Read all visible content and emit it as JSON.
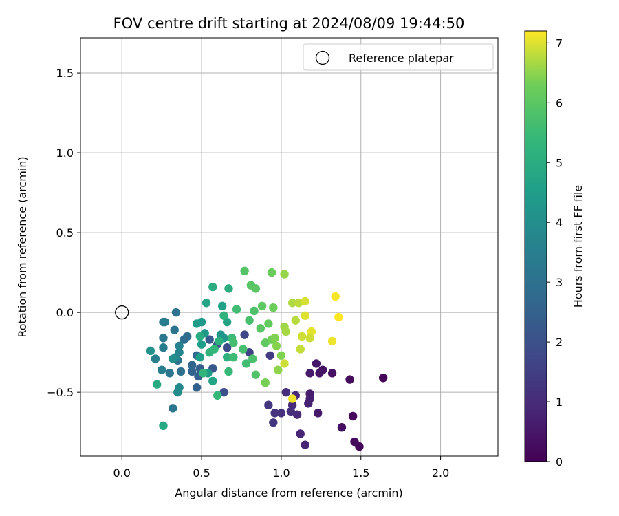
{
  "chart_data": {
    "type": "scatter",
    "title": "FOV centre drift starting at 2024/08/09 19:44:50",
    "xlabel": "Angular distance from reference (arcmin)",
    "ylabel": "Rotation from reference (arcmin)",
    "xlim": [
      -0.26,
      2.36
    ],
    "ylim": [
      -0.9,
      1.72
    ],
    "xticks": [
      0.0,
      0.5,
      1.0,
      1.5,
      2.0
    ],
    "xtick_labels": [
      "0.0",
      "0.5",
      "1.0",
      "1.5",
      "2.0"
    ],
    "yticks": [
      -0.5,
      0.0,
      0.5,
      1.0,
      1.5
    ],
    "ytick_labels": [
      "−0.5",
      "0.0",
      "0.5",
      "1.0",
      "1.5"
    ],
    "grid": true,
    "legend": {
      "placement": "top-right",
      "entries": [
        "Reference platepar"
      ]
    },
    "reference_point": {
      "name": "Reference platepar",
      "x": 0.0,
      "y": 0.0,
      "marker": "open-circle"
    },
    "colorbar": {
      "label": "Hours from first FF file",
      "range": [
        0,
        7.2
      ],
      "ticks": [
        0,
        1,
        2,
        3,
        4,
        5,
        6,
        7
      ],
      "tick_labels": [
        "0",
        "1",
        "2",
        "3",
        "4",
        "5",
        "6",
        "7"
      ],
      "colormap": "viridis"
    },
    "points": [
      {
        "x": 1.64,
        "y": -0.41,
        "h": 0.05
      },
      {
        "x": 1.49,
        "y": -0.84,
        "h": 0.1
      },
      {
        "x": 1.46,
        "y": -0.81,
        "h": 0.15
      },
      {
        "x": 1.45,
        "y": -0.65,
        "h": 0.2
      },
      {
        "x": 1.43,
        "y": -0.42,
        "h": 0.25
      },
      {
        "x": 1.38,
        "y": -0.72,
        "h": 0.3
      },
      {
        "x": 1.32,
        "y": -0.38,
        "h": 0.35
      },
      {
        "x": 1.26,
        "y": -0.36,
        "h": 0.4
      },
      {
        "x": 1.24,
        "y": -0.38,
        "h": 0.45
      },
      {
        "x": 1.22,
        "y": -0.32,
        "h": 0.5
      },
      {
        "x": 1.23,
        "y": -0.63,
        "h": 0.55
      },
      {
        "x": 1.18,
        "y": -0.38,
        "h": 0.6
      },
      {
        "x": 1.18,
        "y": -0.51,
        "h": 0.65
      },
      {
        "x": 1.18,
        "y": -0.54,
        "h": 0.7
      },
      {
        "x": 1.17,
        "y": -0.57,
        "h": 0.75
      },
      {
        "x": 1.15,
        "y": -0.83,
        "h": 0.8
      },
      {
        "x": 1.12,
        "y": -0.76,
        "h": 0.85
      },
      {
        "x": 1.09,
        "y": -0.52,
        "h": 0.9
      },
      {
        "x": 1.1,
        "y": -0.64,
        "h": 0.95
      },
      {
        "x": 1.07,
        "y": -0.58,
        "h": 1.0
      },
      {
        "x": 1.06,
        "y": -0.62,
        "h": 1.05
      },
      {
        "x": 1.03,
        "y": -0.5,
        "h": 1.1
      },
      {
        "x": 1.0,
        "y": -0.63,
        "h": 1.15
      },
      {
        "x": 0.96,
        "y": -0.63,
        "h": 1.2
      },
      {
        "x": 0.95,
        "y": -0.69,
        "h": 1.25
      },
      {
        "x": 0.92,
        "y": -0.58,
        "h": 1.3
      },
      {
        "x": 0.93,
        "y": -0.27,
        "h": 1.4
      },
      {
        "x": 0.8,
        "y": -0.25,
        "h": 1.6
      },
      {
        "x": 0.77,
        "y": -0.14,
        "h": 1.75
      },
      {
        "x": 0.66,
        "y": -0.22,
        "h": 1.85
      },
      {
        "x": 0.64,
        "y": -0.5,
        "h": 1.95
      },
      {
        "x": 0.6,
        "y": -0.2,
        "h": 2.1
      },
      {
        "x": 0.57,
        "y": -0.35,
        "h": 2.2
      },
      {
        "x": 0.55,
        "y": -0.17,
        "h": 2.3
      },
      {
        "x": 0.49,
        "y": -0.35,
        "h": 2.4
      },
      {
        "x": 0.48,
        "y": -0.4,
        "h": 2.45
      },
      {
        "x": 0.47,
        "y": -0.47,
        "h": 2.55
      },
      {
        "x": 0.44,
        "y": -0.33,
        "h": 2.6
      },
      {
        "x": 0.44,
        "y": -0.37,
        "h": 2.65
      },
      {
        "x": 0.47,
        "y": -0.27,
        "h": 2.7
      },
      {
        "x": 0.41,
        "y": -0.15,
        "h": 2.85
      },
      {
        "x": 0.39,
        "y": -0.17,
        "h": 2.9
      },
      {
        "x": 0.37,
        "y": -0.37,
        "h": 2.95
      },
      {
        "x": 0.35,
        "y": -0.3,
        "h": 3.0
      },
      {
        "x": 0.34,
        "y": 0.0,
        "h": 3.05
      },
      {
        "x": 0.33,
        "y": -0.11,
        "h": 3.1
      },
      {
        "x": 0.32,
        "y": -0.6,
        "h": 3.15
      },
      {
        "x": 0.3,
        "y": -0.38,
        "h": 3.2
      },
      {
        "x": 0.27,
        "y": -0.06,
        "h": 3.25
      },
      {
        "x": 0.26,
        "y": -0.16,
        "h": 3.3
      },
      {
        "x": 0.26,
        "y": -0.06,
        "h": 3.35
      },
      {
        "x": 0.26,
        "y": -0.22,
        "h": 3.4
      },
      {
        "x": 0.25,
        "y": -0.36,
        "h": 3.45
      },
      {
        "x": 0.21,
        "y": -0.29,
        "h": 3.5
      },
      {
        "x": 0.36,
        "y": -0.21,
        "h": 3.6
      },
      {
        "x": 0.36,
        "y": -0.25,
        "h": 3.65
      },
      {
        "x": 0.34,
        "y": -0.28,
        "h": 3.75
      },
      {
        "x": 0.36,
        "y": -0.47,
        "h": 3.8
      },
      {
        "x": 0.35,
        "y": -0.5,
        "h": 3.9
      },
      {
        "x": 0.32,
        "y": -0.29,
        "h": 4.0
      },
      {
        "x": 0.18,
        "y": -0.24,
        "h": 4.1
      },
      {
        "x": 0.62,
        "y": -0.14,
        "h": 4.2
      },
      {
        "x": 0.64,
        "y": -0.16,
        "h": 4.25
      },
      {
        "x": 0.52,
        "y": -0.13,
        "h": 4.3
      },
      {
        "x": 0.5,
        "y": -0.06,
        "h": 4.35
      },
      {
        "x": 0.54,
        "y": -0.38,
        "h": 4.4
      },
      {
        "x": 0.47,
        "y": -0.07,
        "h": 4.45
      },
      {
        "x": 0.5,
        "y": -0.2,
        "h": 4.5
      },
      {
        "x": 0.49,
        "y": -0.28,
        "h": 4.55
      },
      {
        "x": 0.63,
        "y": 0.04,
        "h": 4.6
      },
      {
        "x": 0.66,
        "y": -0.06,
        "h": 4.65
      },
      {
        "x": 0.57,
        "y": -0.43,
        "h": 4.7
      },
      {
        "x": 0.53,
        "y": 0.06,
        "h": 4.75
      },
      {
        "x": 0.26,
        "y": -0.71,
        "h": 4.85
      },
      {
        "x": 0.22,
        "y": -0.45,
        "h": 4.9
      },
      {
        "x": 0.49,
        "y": -0.15,
        "h": 4.95
      },
      {
        "x": 0.57,
        "y": 0.16,
        "h": 5.0
      },
      {
        "x": 0.67,
        "y": 0.15,
        "h": 5.05
      },
      {
        "x": 0.61,
        "y": -0.18,
        "h": 5.1
      },
      {
        "x": 0.66,
        "y": -0.28,
        "h": 5.15
      },
      {
        "x": 0.64,
        "y": -0.02,
        "h": 5.2
      },
      {
        "x": 0.55,
        "y": -0.25,
        "h": 5.25
      },
      {
        "x": 0.51,
        "y": -0.38,
        "h": 5.3
      },
      {
        "x": 0.58,
        "y": -0.23,
        "h": 5.35
      },
      {
        "x": 0.6,
        "y": -0.52,
        "h": 5.4
      },
      {
        "x": 0.67,
        "y": -0.37,
        "h": 5.45
      },
      {
        "x": 0.69,
        "y": -0.16,
        "h": 5.5
      },
      {
        "x": 0.7,
        "y": -0.28,
        "h": 5.55
      },
      {
        "x": 0.72,
        "y": 0.02,
        "h": 5.6
      },
      {
        "x": 0.7,
        "y": -0.19,
        "h": 5.65
      },
      {
        "x": 0.8,
        "y": -0.05,
        "h": 5.7
      },
      {
        "x": 0.82,
        "y": -0.29,
        "h": 5.75
      },
      {
        "x": 0.83,
        "y": 0.01,
        "h": 5.8
      },
      {
        "x": 0.84,
        "y": -0.39,
        "h": 5.85
      },
      {
        "x": 0.77,
        "y": 0.26,
        "h": 5.9
      },
      {
        "x": 0.81,
        "y": 0.17,
        "h": 5.95
      },
      {
        "x": 0.84,
        "y": 0.15,
        "h": 6.0
      },
      {
        "x": 0.88,
        "y": 0.04,
        "h": 6.05
      },
      {
        "x": 0.9,
        "y": -0.19,
        "h": 6.1
      },
      {
        "x": 0.92,
        "y": -0.07,
        "h": 6.15
      },
      {
        "x": 0.94,
        "y": 0.25,
        "h": 6.2
      },
      {
        "x": 0.95,
        "y": 0.03,
        "h": 6.25
      },
      {
        "x": 0.94,
        "y": -0.17,
        "h": 6.3
      },
      {
        "x": 0.9,
        "y": -0.44,
        "h": 6.35
      },
      {
        "x": 0.96,
        "y": -0.16,
        "h": 6.4
      },
      {
        "x": 0.97,
        "y": -0.21,
        "h": 6.45
      },
      {
        "x": 0.98,
        "y": -0.36,
        "h": 6.5
      },
      {
        "x": 1.02,
        "y": 0.24,
        "h": 6.55
      },
      {
        "x": 1.02,
        "y": -0.09,
        "h": 6.6
      },
      {
        "x": 1.03,
        "y": -0.12,
        "h": 6.65
      },
      {
        "x": 1.07,
        "y": 0.06,
        "h": 6.7
      },
      {
        "x": 1.09,
        "y": -0.05,
        "h": 6.75
      },
      {
        "x": 1.11,
        "y": 0.06,
        "h": 6.8
      },
      {
        "x": 1.12,
        "y": -0.23,
        "h": 6.85
      },
      {
        "x": 1.13,
        "y": -0.15,
        "h": 6.9
      },
      {
        "x": 1.15,
        "y": 0.07,
        "h": 6.95
      },
      {
        "x": 1.15,
        "y": -0.02,
        "h": 7.0
      },
      {
        "x": 1.19,
        "y": -0.12,
        "h": 7.05
      },
      {
        "x": 1.32,
        "y": -0.18,
        "h": 7.1
      },
      {
        "x": 1.34,
        "y": 0.1,
        "h": 7.15
      },
      {
        "x": 1.36,
        "y": -0.03,
        "h": 7.2
      },
      {
        "x": 1.07,
        "y": -0.54,
        "h": 7.1
      },
      {
        "x": 1.02,
        "y": -0.32,
        "h": 6.9
      },
      {
        "x": 0.78,
        "y": -0.32,
        "h": 5.6
      },
      {
        "x": 0.76,
        "y": -0.23,
        "h": 5.7
      },
      {
        "x": 0.87,
        "y": -0.1,
        "h": 6.0
      },
      {
        "x": 1.0,
        "y": -0.27,
        "h": 6.4
      },
      {
        "x": 1.18,
        "y": -0.16,
        "h": 6.9
      }
    ]
  }
}
